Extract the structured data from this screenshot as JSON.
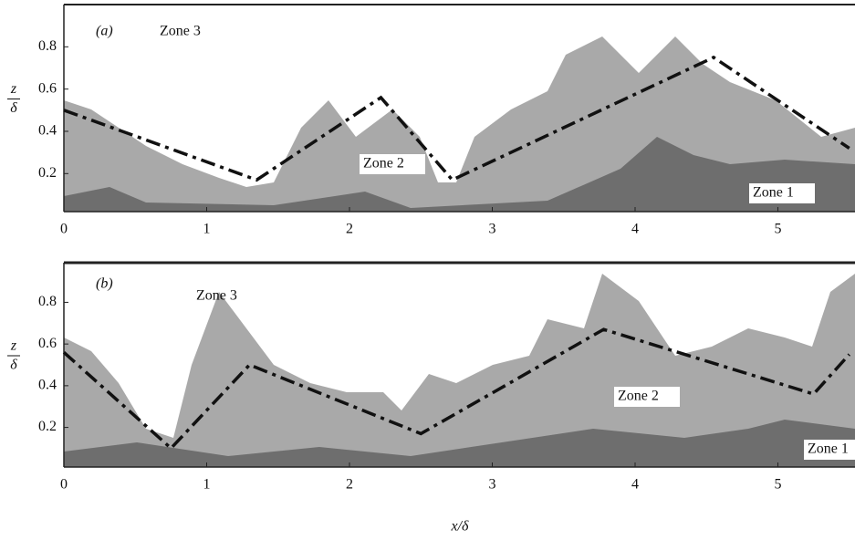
{
  "chart_data": [
    {
      "type": "line",
      "panel_label": "(a)",
      "annotations": [
        "Zone 3",
        "Zone 2",
        "Zone 1"
      ],
      "ylabel_num": "z",
      "ylabel_den": "δ",
      "x": [
        0,
        1.35,
        2.22,
        2.72,
        4.55,
        5.5
      ],
      "series": [
        {
          "color": "#111111",
          "values": [
            0.5,
            0.17,
            0.56,
            0.17,
            0.75,
            0.32
          ]
        }
      ],
      "xlim": [
        0,
        5.54
      ],
      "ylim": [
        0.02,
        1.0
      ],
      "xticks": [
        0,
        1,
        2,
        3,
        4,
        5
      ],
      "yticks": [
        0.2,
        0.4,
        0.6,
        0.8
      ]
    },
    {
      "type": "line",
      "panel_label": "(b)",
      "annotations": [
        "Zone 3",
        "Zone 2",
        "Zone 1"
      ],
      "ylabel_num": "z",
      "ylabel_den": "δ",
      "xlabel": "x/δ",
      "x": [
        0,
        0.75,
        1.3,
        2.5,
        3.78,
        5.25,
        5.5
      ],
      "series": [
        {
          "color": "#111111",
          "values": [
            0.56,
            0.1,
            0.5,
            0.17,
            0.67,
            0.36,
            0.55
          ]
        }
      ],
      "xlim": [
        0,
        5.54
      ],
      "ylim": [
        0.01,
        0.99
      ],
      "xticks": [
        0,
        1,
        2,
        3,
        4,
        5
      ],
      "yticks": [
        0.2,
        0.4,
        0.6,
        0.8
      ]
    }
  ]
}
